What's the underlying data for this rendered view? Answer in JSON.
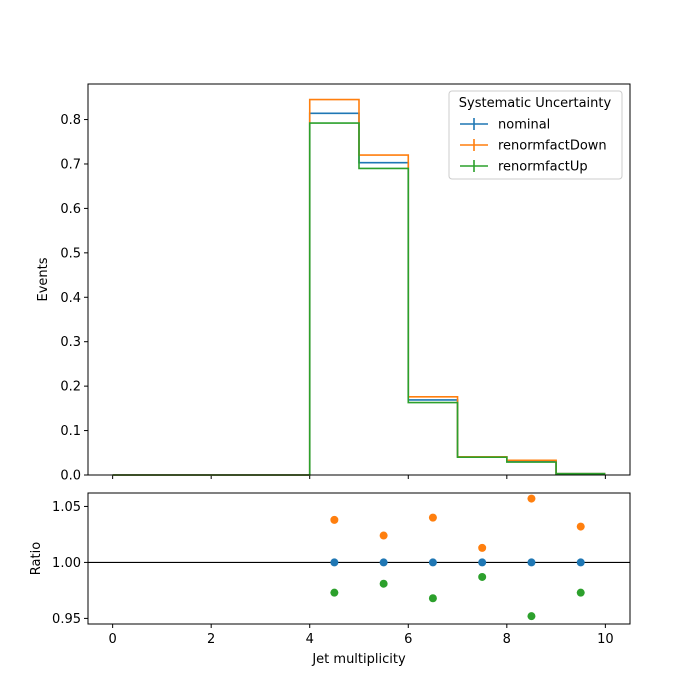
{
  "chart_data": [
    {
      "type": "step",
      "xlabel": "",
      "ylabel": "Events",
      "xlim": [
        -0.5,
        10.5
      ],
      "ylim": [
        0,
        0.88
      ],
      "xticks": [
        0,
        2,
        4,
        6,
        8,
        10
      ],
      "xtick_labels_visible": false,
      "yticks": [
        0.0,
        0.1,
        0.2,
        0.3,
        0.4,
        0.5,
        0.6,
        0.7,
        0.8
      ],
      "ytick_labels": [
        "0.0",
        "0.1",
        "0.2",
        "0.3",
        "0.4",
        "0.5",
        "0.6",
        "0.7",
        "0.8"
      ],
      "bin_edges": [
        0,
        1,
        2,
        3,
        4,
        5,
        6,
        7,
        8,
        9,
        10
      ],
      "legend": {
        "title": "Systematic Uncertainty",
        "placement": "top-right"
      },
      "series": [
        {
          "name": "nominal",
          "color": "#1f77b4",
          "values": [
            0,
            0,
            0,
            0,
            0.814,
            0.703,
            0.169,
            0.041,
            0.031,
            0.003
          ]
        },
        {
          "name": "renormfactDown",
          "color": "#ff7f0e",
          "values": [
            0,
            0,
            0,
            0,
            0.845,
            0.72,
            0.176,
            0.041,
            0.033,
            0.003
          ]
        },
        {
          "name": "renormfactUp",
          "color": "#2ca02c",
          "values": [
            0,
            0,
            0,
            0,
            0.792,
            0.69,
            0.163,
            0.04,
            0.029,
            0.003
          ]
        }
      ]
    },
    {
      "type": "scatter",
      "xlabel": "Jet multiplicity",
      "ylabel": "Ratio",
      "xlim": [
        -0.5,
        10.5
      ],
      "ylim": [
        0.945,
        1.062
      ],
      "xticks": [
        0,
        2,
        4,
        6,
        8,
        10
      ],
      "xtick_labels": [
        "0",
        "2",
        "4",
        "6",
        "8",
        "10"
      ],
      "yticks": [
        0.95,
        1.0,
        1.05
      ],
      "ytick_labels": [
        "0.95",
        "1.00",
        "1.05"
      ],
      "reference_line": 1.0,
      "x": [
        4.5,
        5.5,
        6.5,
        7.5,
        8.5,
        9.5
      ],
      "series": [
        {
          "name": "nominal",
          "color": "#1f77b4",
          "values": [
            1.0,
            1.0,
            1.0,
            1.0,
            1.0,
            1.0
          ]
        },
        {
          "name": "renormfactDown",
          "color": "#ff7f0e",
          "values": [
            1.038,
            1.024,
            1.04,
            1.013,
            1.057,
            1.032
          ]
        },
        {
          "name": "renormfactUp",
          "color": "#2ca02c",
          "values": [
            0.973,
            0.981,
            0.968,
            0.987,
            0.952,
            0.973
          ]
        }
      ]
    }
  ]
}
